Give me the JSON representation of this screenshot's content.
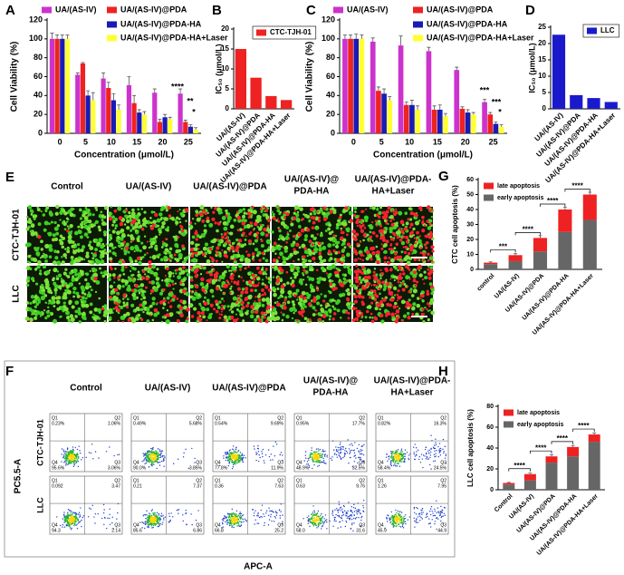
{
  "chart_data": [
    {
      "panel": "A",
      "type": "bar",
      "xlabel": "Concentration (μmol/L)",
      "ylabel": "Cell Viability (%)",
      "categories": [
        "0",
        "5",
        "10",
        "15",
        "20",
        "25"
      ],
      "series": [
        {
          "name": "UA/(AS-IV)",
          "color": "#cc33cc",
          "values": [
            100,
            62,
            58,
            51,
            43,
            42
          ],
          "errors": [
            6,
            2,
            6,
            9,
            4,
            5
          ]
        },
        {
          "name": "UA/(AS-IV)@PDA",
          "color": "#ee2222",
          "values": [
            100,
            74,
            48,
            32,
            12,
            12
          ],
          "errors": [
            4,
            1,
            6,
            8,
            3,
            2
          ]
        },
        {
          "name": "UA/(AS-IV)@PDA-HA",
          "color": "#1a1ab4",
          "values": [
            100,
            40,
            35,
            22,
            17,
            7
          ],
          "errors": [
            4,
            5,
            7,
            3,
            3,
            2
          ]
        },
        {
          "name": "UA/(AS-IV)@PDA-HA+Laser",
          "color": "#ffff33",
          "values": [
            100,
            35,
            25,
            20,
            15,
            4
          ],
          "errors": [
            4,
            8,
            5,
            3,
            2,
            2
          ]
        }
      ],
      "ylim": [
        0,
        120
      ],
      "yticks": [
        0,
        20,
        40,
        60,
        80,
        100,
        120
      ],
      "annotations": [
        "****",
        "**",
        "*"
      ]
    },
    {
      "panel": "B",
      "type": "bar",
      "ylabel": "IC₅₀ (μmol/L)",
      "categories": [
        "UA/(AS-IV)",
        "UA/(AS-IV)@PDA",
        "UA/(AS-IV)@PDA-HA",
        "UA/(AS-IV)@PDA-HA+Laser"
      ],
      "series": [
        {
          "name": "CTC-TJH-01",
          "color": "#ee2222",
          "values": [
            15,
            7.8,
            3.2,
            2.2
          ]
        }
      ],
      "ylim": [
        0,
        20
      ],
      "yticks": [
        0,
        5,
        10,
        15,
        20
      ]
    },
    {
      "panel": "C",
      "type": "bar",
      "xlabel": "Concentration (μmol/L)",
      "ylabel": "Cell Viability (%)",
      "categories": [
        "0",
        "5",
        "10",
        "15",
        "20",
        "25"
      ],
      "series": [
        {
          "name": "UA/(AS-IV)",
          "color": "#cc33cc",
          "values": [
            100,
            97,
            93,
            87,
            67,
            33
          ],
          "errors": [
            4,
            4,
            10,
            4,
            3,
            3
          ]
        },
        {
          "name": "UA/(AS-IV)@PDA",
          "color": "#ee2222",
          "values": [
            100,
            45,
            30,
            25,
            26,
            20
          ],
          "errors": [
            4,
            4,
            3,
            4,
            2,
            2
          ]
        },
        {
          "name": "UA/(AS-IV)@PDA-HA",
          "color": "#1a1ab4",
          "values": [
            100,
            42,
            30,
            25,
            22,
            10
          ],
          "errors": [
            5,
            5,
            5,
            5,
            3,
            2
          ]
        },
        {
          "name": "UA/(AS-IV)@PDA-HA+Laser",
          "color": "#ffff33",
          "values": [
            100,
            35,
            25,
            18,
            20,
            7
          ],
          "errors": [
            4,
            4,
            4,
            3,
            2,
            2
          ]
        }
      ],
      "ylim": [
        0,
        120
      ],
      "yticks": [
        0,
        20,
        40,
        60,
        80,
        100,
        120
      ],
      "annotations": [
        "***",
        "***",
        "*"
      ]
    },
    {
      "panel": "D",
      "type": "bar",
      "ylabel": "IC₅₀ (μmol/L)",
      "categories": [
        "UA/(AS-IV)",
        "UA/(AS-IV)@PDA",
        "UA/(AS-IV)@PDA-HA",
        "UA/(AS-IV)@PDA-HA+Laser"
      ],
      "series": [
        {
          "name": "LLC",
          "color": "#1a1acc",
          "values": [
            22.7,
            4.2,
            3.3,
            2.1
          ]
        }
      ],
      "ylim": [
        0,
        25
      ],
      "yticks": [
        0,
        5,
        10,
        15,
        20,
        25
      ]
    },
    {
      "panel": "G",
      "type": "stacked_bar",
      "ylabel": "CTC cell apoptosis (%)",
      "categories": [
        "control",
        "UA/(AS-IV)",
        "UA/(AS-IV)@PDA",
        "UA/(AS-IV)@PDA-HA",
        "UA/(AS-IV)@PDA-HA+Laser"
      ],
      "series": [
        {
          "name": "late apoptosis",
          "color": "#ee2222",
          "values": [
            1,
            4,
            9,
            15,
            17
          ],
          "errors": [
            0.5,
            1,
            1.5,
            1.5,
            1.5
          ]
        },
        {
          "name": "early apoptosis",
          "color": "#666666",
          "values": [
            3.5,
            5.5,
            12,
            25,
            33
          ]
        }
      ],
      "ylim": [
        0,
        60
      ],
      "yticks": [
        0,
        10,
        20,
        30,
        40,
        50,
        60
      ],
      "annotations": [
        "***",
        "****",
        "****",
        "****"
      ]
    },
    {
      "panel": "H",
      "type": "stacked_bar",
      "ylabel": "LLC cell apoptosis (%)",
      "categories": [
        "Control",
        "UA/(AS-IV)",
        "UA/(AS-IV)@PDA",
        "UA/(AS-IV)@PDA-HA",
        "UA/(AS-IV)@PDA-HA+Laser"
      ],
      "series": [
        {
          "name": "late apoptosis",
          "color": "#ee2222",
          "values": [
            1.5,
            6,
            6,
            9,
            7
          ],
          "errors": [
            0.5,
            1,
            1.5,
            1.5,
            1.5
          ]
        },
        {
          "name": "early apoptosis",
          "color": "#666666",
          "values": [
            5,
            9,
            26,
            32,
            46
          ]
        }
      ],
      "ylim": [
        0,
        80
      ],
      "yticks": [
        0,
        20,
        40,
        60,
        80
      ],
      "annotations": [
        "****",
        "****",
        "****",
        "****"
      ]
    }
  ],
  "figure_e": {
    "panel": "E",
    "columns": [
      [
        "Control"
      ],
      [
        "UA/(AS-IV)"
      ],
      [
        "UA/(AS-IV)@PDA"
      ],
      [
        "UA/(AS-IV)@",
        "PDA-HA"
      ],
      [
        "UA/(AS-IV)@PDA-",
        "HA+Laser"
      ]
    ],
    "rows": [
      "CTC-TJH-01",
      "LLC"
    ]
  },
  "figure_f": {
    "panel": "F",
    "columns": [
      [
        "Control"
      ],
      [
        "UA/(AS-IV)"
      ],
      [
        "UA/(AS-IV)@PDA"
      ],
      [
        "UA/(AS-IV)@",
        "PDA-HA"
      ],
      [
        "UA/(AS-IV)@PDA-",
        "HA+Laser"
      ]
    ],
    "rows": [
      "CTC-TJH-01",
      "LLC"
    ],
    "ylabel": "PC5.5-A",
    "xlabel": "APC-A",
    "quadrants": [
      "Q1",
      "Q2",
      "Q3",
      "Q4"
    ],
    "plots": [
      [
        [
          "0.23%",
          "1.06%",
          "3.06%",
          "95.6%"
        ],
        [
          "0.49%",
          "5.68%",
          "3.85%",
          "90.0%"
        ],
        [
          "0.54%",
          "9.69%",
          "11.9%",
          "77.8%"
        ],
        [
          "0.95%",
          "17.7%",
          "32.5%",
          "48.9%"
        ],
        [
          "0.82%",
          "16.3%",
          "24.5%",
          "58.4%"
        ]
      ],
      [
        [
          "0.092",
          "3.47",
          "2.14",
          "94.3"
        ],
        [
          "0.21",
          "7.37",
          "6.86",
          "85.6"
        ],
        [
          "0.36",
          "7.63",
          "25.2",
          "66.8"
        ],
        [
          "0.63",
          "9.76",
          "31.6",
          "58.0"
        ],
        [
          "1.26",
          "7.95",
          "44.9",
          "45.9"
        ]
      ]
    ]
  }
}
